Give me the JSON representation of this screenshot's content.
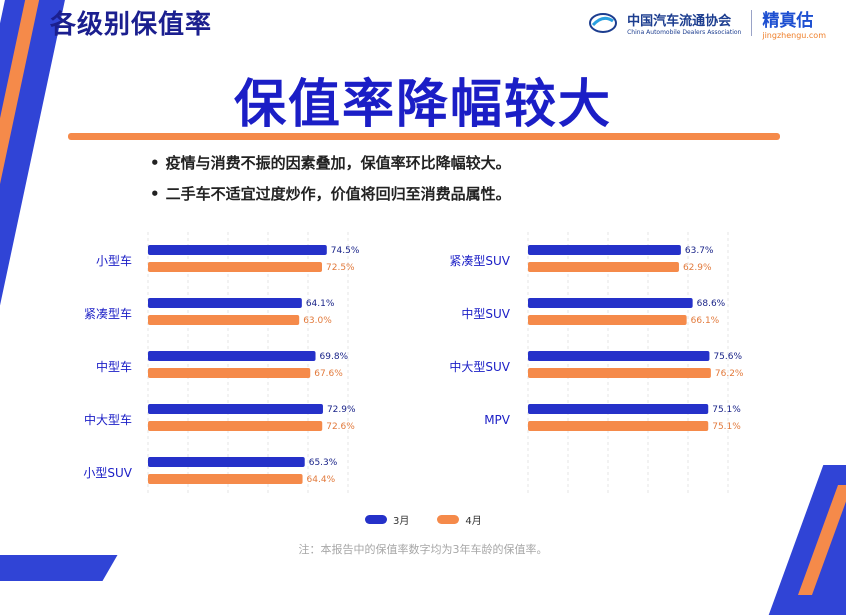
{
  "header": {
    "title": "各级别保值率",
    "org_cn": "中国汽车流通协会",
    "org_en": "China Automobile Dealers Association",
    "brand_cn": "精真估",
    "brand_en": "jingzhengu.com"
  },
  "main_title": "保值率降幅较大",
  "bullets": [
    "疫情与消费不振的因素叠加，保值率环比降幅较大。",
    "二手车不适宜过度炒作，价值将回归至消费品属性。"
  ],
  "colors": {
    "march": "#2531c9",
    "april": "#f58a4a",
    "navy": "#1b1ec6"
  },
  "chart_data": [
    {
      "type": "bar",
      "categories": [
        "小型车",
        "紧凑型车",
        "中型车",
        "中大型车",
        "小型SUV"
      ],
      "series": [
        {
          "name": "3月",
          "values": [
            74.5,
            64.1,
            69.8,
            72.9,
            65.3
          ],
          "labels": [
            "74.5%",
            "64.1%",
            "69.8%",
            "72.9%",
            "65.3%"
          ]
        },
        {
          "name": "4月",
          "values": [
            72.5,
            63.0,
            67.6,
            72.6,
            64.4
          ],
          "labels": [
            "72.5%",
            "63.0%",
            "67.6%",
            "72.6%",
            "64.4%"
          ]
        }
      ]
    },
    {
      "type": "bar",
      "categories": [
        "紧凑型SUV",
        "中型SUV",
        "中大型SUV",
        "MPV"
      ],
      "series": [
        {
          "name": "3月",
          "values": [
            63.7,
            68.6,
            75.6,
            75.1
          ],
          "labels": [
            "63.7%",
            "68.6%",
            "75.6%",
            "75.1%"
          ]
        },
        {
          "name": "4月",
          "values": [
            62.9,
            66.1,
            76.2,
            75.1
          ],
          "labels": [
            "62.9%",
            "66.1%",
            "76.2%",
            "75.1%"
          ]
        }
      ]
    }
  ],
  "legend": {
    "march": "3月",
    "april": "4月"
  },
  "note": "注：本报告中的保值率数字均为3年车龄的保值率。"
}
